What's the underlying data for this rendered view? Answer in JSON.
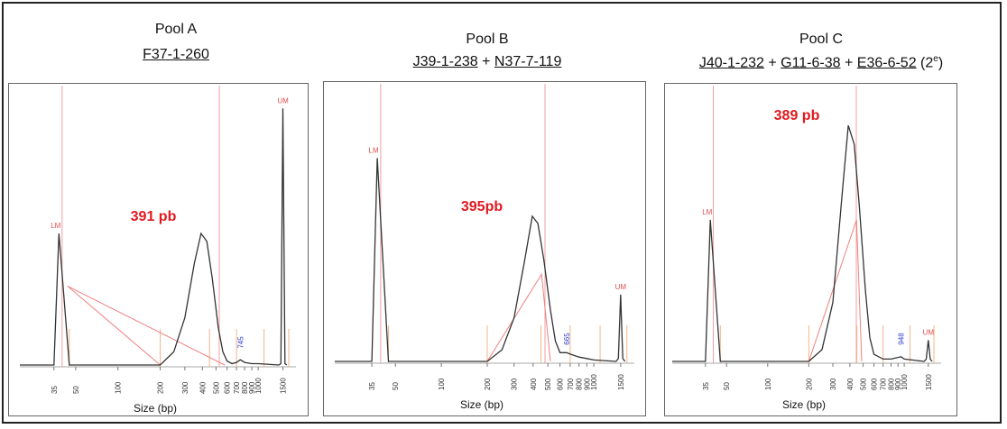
{
  "chart_data": [
    {
      "type": "line",
      "title": "Pool A",
      "subtitle_parts": [
        {
          "text": "F37-1-260",
          "underline": true
        }
      ],
      "xlabel": "Size (bp)",
      "x_ticks": [
        "35",
        "50",
        "100",
        "200",
        "300",
        "400",
        "500",
        "600",
        "700",
        "800",
        "900",
        "1000",
        "1500"
      ],
      "peak_label": "391 pb",
      "markers": [
        {
          "text": "LM",
          "x": 35
        },
        {
          "text": "UM",
          "x": 1500
        },
        {
          "text": "745",
          "x": 745
        }
      ],
      "x": [
        20,
        35,
        38,
        45,
        100,
        200,
        250,
        300,
        350,
        391,
        430,
        470,
        520,
        560,
        600,
        650,
        700,
        745,
        800,
        900,
        1000,
        1400,
        1450,
        1500,
        1550,
        1600
      ],
      "y": [
        0,
        0,
        100,
        0,
        0,
        0,
        10,
        36,
        77,
        100,
        94,
        66,
        28,
        10,
        3,
        1,
        2,
        4,
        2,
        1,
        1,
        0,
        1,
        195,
        1,
        0
      ],
      "ylim": [
        0,
        200
      ]
    },
    {
      "type": "line",
      "title": "Pool B",
      "subtitle_parts": [
        {
          "text": "J39-1-238",
          "underline": true
        },
        {
          "text": " + ",
          "underline": false
        },
        {
          "text": "N37-7-119",
          "underline": true
        }
      ],
      "xlabel": "Size (bp)",
      "x_ticks": [
        "35",
        "50",
        "100",
        "200",
        "300",
        "400",
        "500",
        "600",
        "700",
        "800",
        "900",
        "1000",
        "1500"
      ],
      "peak_label": "395pb",
      "markers": [
        {
          "text": "LM",
          "x": 35
        },
        {
          "text": "UM",
          "x": 1500
        },
        {
          "text": "665",
          "x": 665
        }
      ],
      "x": [
        20,
        35,
        38,
        45,
        100,
        200,
        250,
        300,
        350,
        395,
        430,
        470,
        520,
        560,
        600,
        665,
        700,
        800,
        900,
        1000,
        1400,
        1450,
        1500,
        1550,
        1600
      ],
      "y": [
        0,
        0,
        140,
        0,
        0,
        0,
        8,
        30,
        68,
        100,
        95,
        70,
        35,
        14,
        6,
        6,
        5,
        3,
        2,
        1,
        0,
        2,
        46,
        2,
        0
      ],
      "ylim": [
        0,
        180
      ]
    },
    {
      "type": "line",
      "title": "Pool C",
      "subtitle_parts": [
        {
          "text": "J40-1-232",
          "underline": true
        },
        {
          "text": " + ",
          "underline": false
        },
        {
          "text": "G11-6-38",
          "underline": true
        },
        {
          "text": " + ",
          "underline": false
        },
        {
          "text": "E36-6-52",
          "underline": true
        },
        {
          "text": " (2",
          "underline": false,
          "sup": "e"
        },
        {
          "text": ")",
          "underline": false
        }
      ],
      "xlabel": "Size (bp)",
      "x_ticks": [
        "35",
        "50",
        "100",
        "200",
        "300",
        "400",
        "500",
        "600",
        "700",
        "800",
        "900",
        "1000",
        "1500"
      ],
      "peak_label": "389 pb",
      "markers": [
        {
          "text": "LM",
          "x": 35
        },
        {
          "text": "UM",
          "x": 1500
        },
        {
          "text": "948",
          "x": 948
        }
      ],
      "x": [
        20,
        35,
        38,
        45,
        100,
        200,
        250,
        300,
        350,
        389,
        430,
        470,
        520,
        560,
        600,
        700,
        800,
        948,
        1000,
        1400,
        1450,
        1500,
        1550,
        1600
      ],
      "y": [
        0,
        0,
        60,
        0,
        0,
        0,
        5,
        25,
        70,
        100,
        92,
        65,
        30,
        10,
        3,
        1,
        1,
        2,
        1,
        0,
        1,
        9,
        1,
        0
      ],
      "ylim": [
        0,
        110
      ]
    }
  ]
}
